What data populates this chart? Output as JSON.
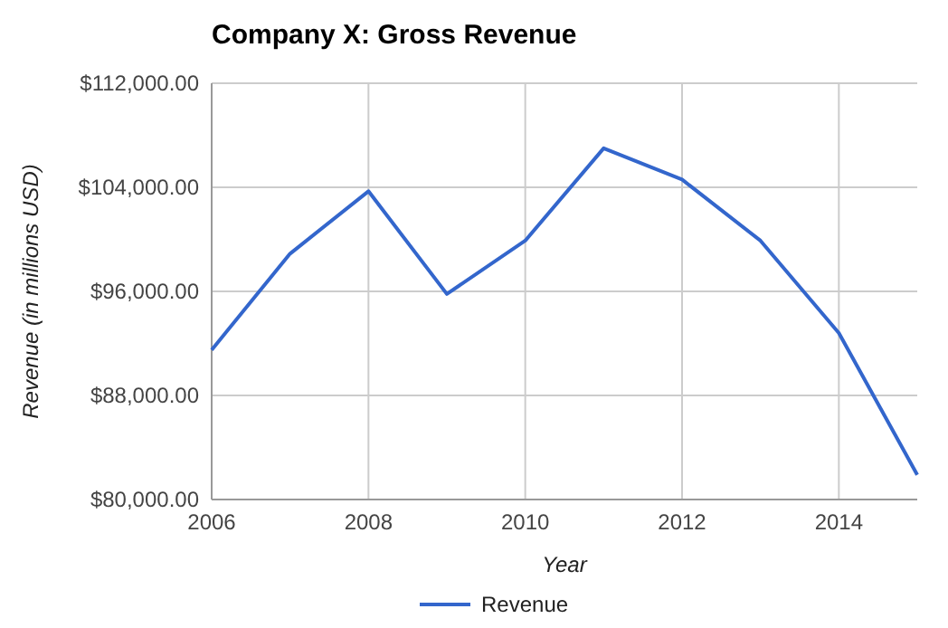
{
  "chart_data": {
    "type": "line",
    "title": "Company X: Gross Revenue",
    "xlabel": "Year",
    "ylabel": "Revenue (in millions USD)",
    "x": [
      2006,
      2007,
      2008,
      2009,
      2010,
      2011,
      2012,
      2013,
      2014,
      2015
    ],
    "series": [
      {
        "name": "Revenue",
        "color": "#3366cc",
        "values": [
          91500,
          98900,
          103700,
          95800,
          99900,
          107000,
          104600,
          99900,
          92800,
          81900
        ]
      }
    ],
    "xlim": [
      2006,
      2015
    ],
    "xticks": [
      2006,
      2008,
      2010,
      2012,
      2014
    ],
    "ylim": [
      80000,
      112000
    ],
    "yticks": [
      {
        "value": 80000,
        "label": "$80,000.00"
      },
      {
        "value": 88000,
        "label": "$88,000.00"
      },
      {
        "value": 96000,
        "label": "$96,000.00"
      },
      {
        "value": 104000,
        "label": "$104,000.00"
      },
      {
        "value": 112000,
        "label": "$112,000.00"
      }
    ],
    "grid": true,
    "legend": "bottom",
    "marker": "none",
    "line_style": "solid"
  }
}
